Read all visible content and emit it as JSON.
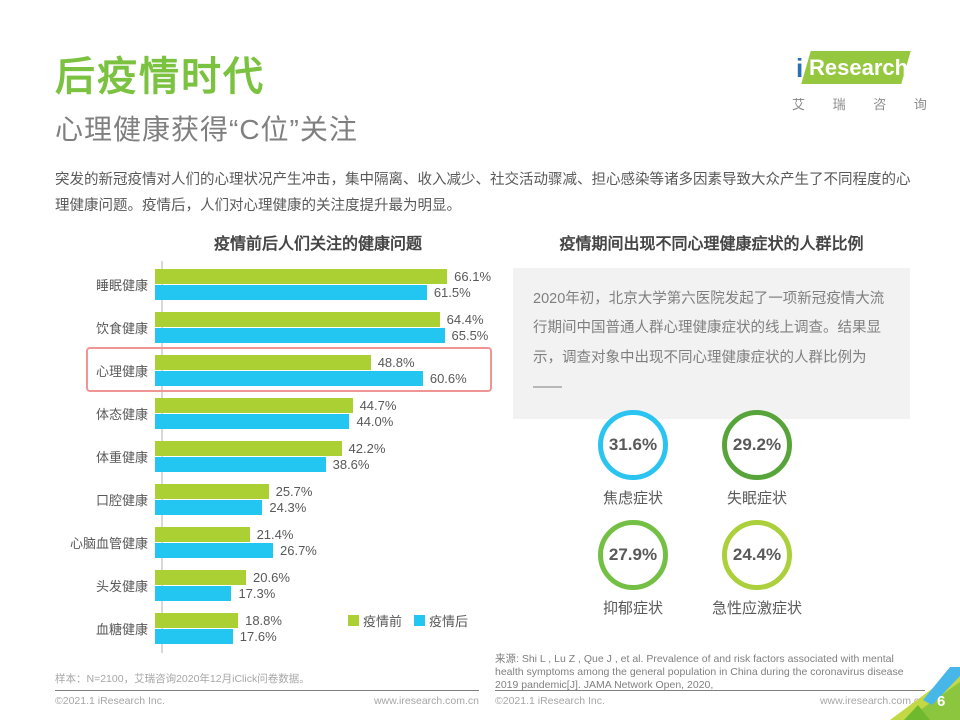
{
  "page": {
    "title": "后疫情时代",
    "subtitle": "心理健康获得“C位”关注",
    "intro": "突发的新冠疫情对人们的心理状况产生冲击，集中隔离、收入减少、社交活动骤减、担心感染等诸多因素导致大众产生了不同程度的心理健康问题。疫情后，人们对心理健康的关注度提升最为明显。",
    "page_number": "6"
  },
  "logo": {
    "brand_i": "i",
    "brand": "Research",
    "brand_cn": "艾瑞咨询"
  },
  "colors": {
    "title_green": "#7cc241",
    "bar_green": "#abd034",
    "bar_blue": "#23c6f0",
    "highlight_red": "#f19494",
    "infobox_gray": "#f2f2f2"
  },
  "chart_data": [
    {
      "type": "bar",
      "orientation": "horizontal",
      "title": "疫情前后人们关注的健康问题",
      "categories": [
        "睡眠健康",
        "饮食健康",
        "心理健康",
        "体态健康",
        "体重健康",
        "口腔健康",
        "心脑血管健康",
        "头发健康",
        "血糖健康"
      ],
      "series": [
        {
          "name": "疫情前",
          "color": "#abd034",
          "values": [
            66.1,
            64.4,
            48.8,
            44.7,
            42.2,
            25.7,
            21.4,
            20.6,
            18.8
          ]
        },
        {
          "name": "疫情后",
          "color": "#23c6f0",
          "values": [
            61.5,
            65.5,
            60.6,
            44.0,
            38.6,
            24.3,
            26.7,
            17.3,
            17.6
          ]
        }
      ],
      "unit": "%",
      "xlim": [
        0,
        70
      ],
      "value_labels": true,
      "grid": false,
      "legend_position": "bottom-right",
      "highlight_category": "心理健康"
    },
    {
      "type": "kpi-circles",
      "title": "疫情期间出现不同心理健康症状的人群比例",
      "items": [
        {
          "value": 31.6,
          "label": "焦虑症状",
          "color": "#2bc4f0"
        },
        {
          "value": 29.2,
          "label": "失眠症状",
          "color": "#57a53a"
        },
        {
          "value": 27.9,
          "label": "抑郁症状",
          "color": "#73c045"
        },
        {
          "value": 24.4,
          "label": "急性应激症状",
          "color": "#abd03b"
        }
      ],
      "unit": "%"
    }
  ],
  "right_panel": {
    "infobox": "2020年初，北京大学第六医院发起了一项新冠疫情大流行期间中国普通人群心理健康症状的线上调查。结果显示，调查对象中出现不同心理健康症状的人群比例为——",
    "source": "来源: Shi L , Lu Z , Que J , et al. Prevalence of and risk factors associated with mental health symptoms among the general population in China during the coronavirus disease 2019 pandemic[J]. JAMA Network Open, 2020,"
  },
  "footer": {
    "sample_note": "样本：N=2100，艾瑞咨询2020年12月iClick问卷数据。",
    "copyright": "©2021.1 iResearch Inc.",
    "website": "www.iresearch.com.cn"
  }
}
